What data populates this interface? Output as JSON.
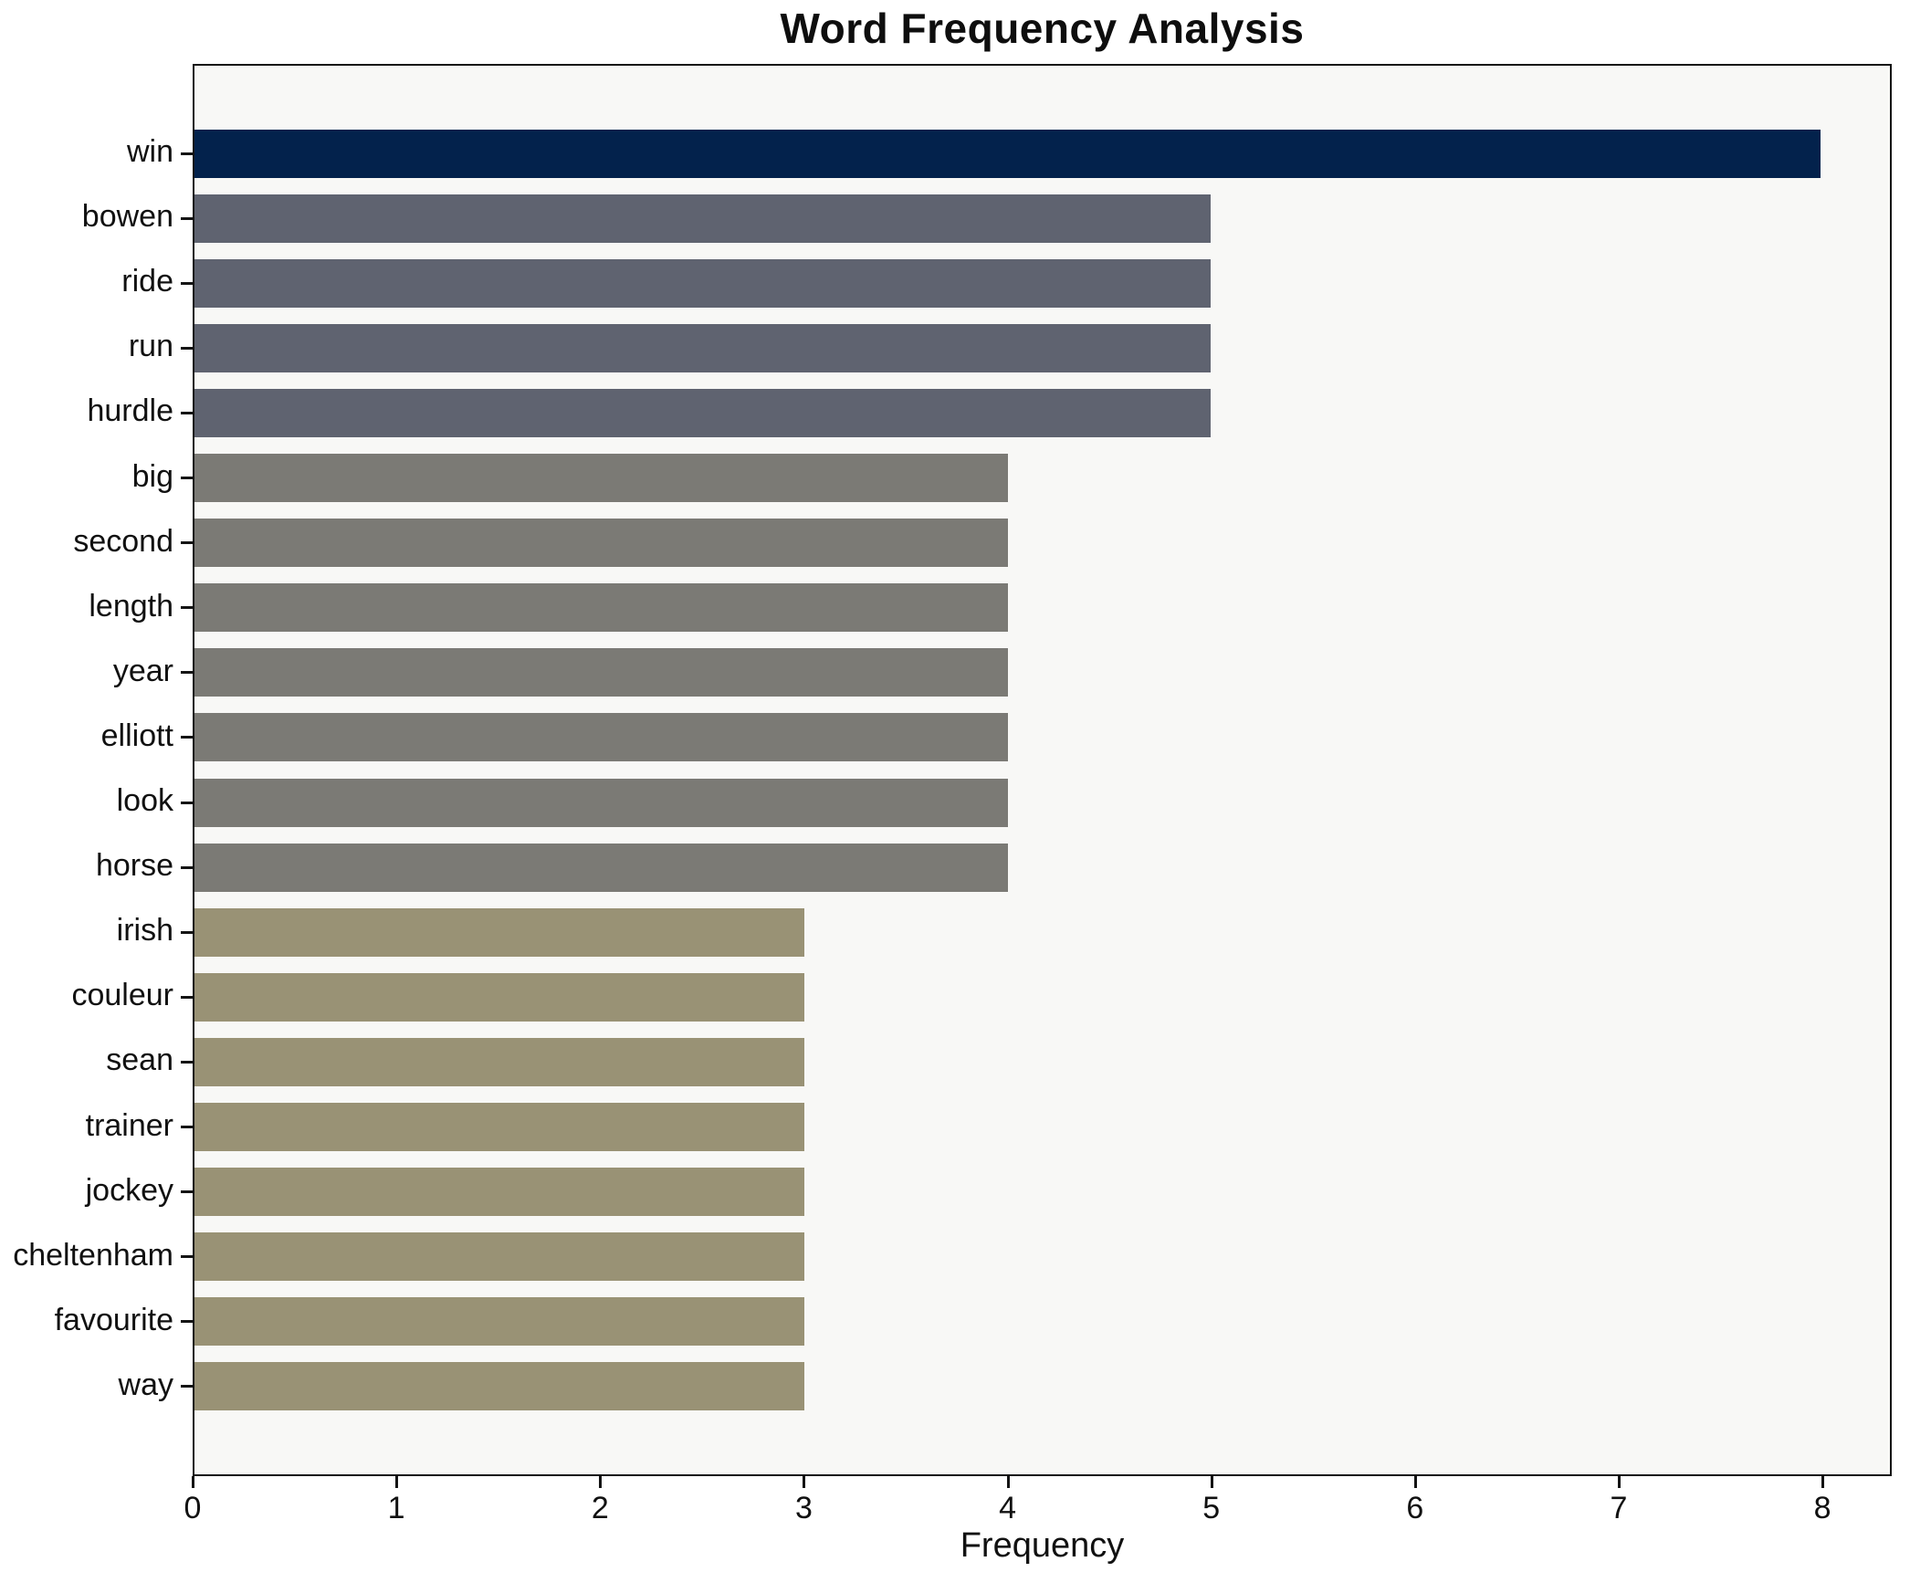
{
  "chart_data": {
    "type": "bar",
    "orientation": "horizontal",
    "title": "Word Frequency Analysis",
    "xlabel": "Frequency",
    "ylabel": "",
    "grid": false,
    "legend": false,
    "plot_background": "#f8f8f6",
    "spine_color": "#141414",
    "xlim": [
      0,
      8.34
    ],
    "x_ticks": [
      0,
      1,
      2,
      3,
      4,
      5,
      6,
      7,
      8
    ],
    "categories": [
      "win",
      "bowen",
      "ride",
      "run",
      "hurdle",
      "big",
      "second",
      "length",
      "year",
      "elliott",
      "look",
      "horse",
      "irish",
      "couleur",
      "sean",
      "trainer",
      "jockey",
      "cheltenham",
      "favourite",
      "way"
    ],
    "values": [
      8,
      5,
      5,
      5,
      5,
      4,
      4,
      4,
      4,
      4,
      4,
      4,
      3,
      3,
      3,
      3,
      3,
      3,
      3,
      3
    ],
    "colors": {
      "value_8": "#03224c",
      "value_5": "#5f6370",
      "value_4": "#7b7a75",
      "value_3": "#999275"
    },
    "bar_colors": [
      "#03224c",
      "#5f6370",
      "#5f6370",
      "#5f6370",
      "#5f6370",
      "#7b7a75",
      "#7b7a75",
      "#7b7a75",
      "#7b7a75",
      "#7b7a75",
      "#7b7a75",
      "#7b7a75",
      "#999275",
      "#999275",
      "#999275",
      "#999275",
      "#999275",
      "#999275",
      "#999275",
      "#999275"
    ]
  }
}
